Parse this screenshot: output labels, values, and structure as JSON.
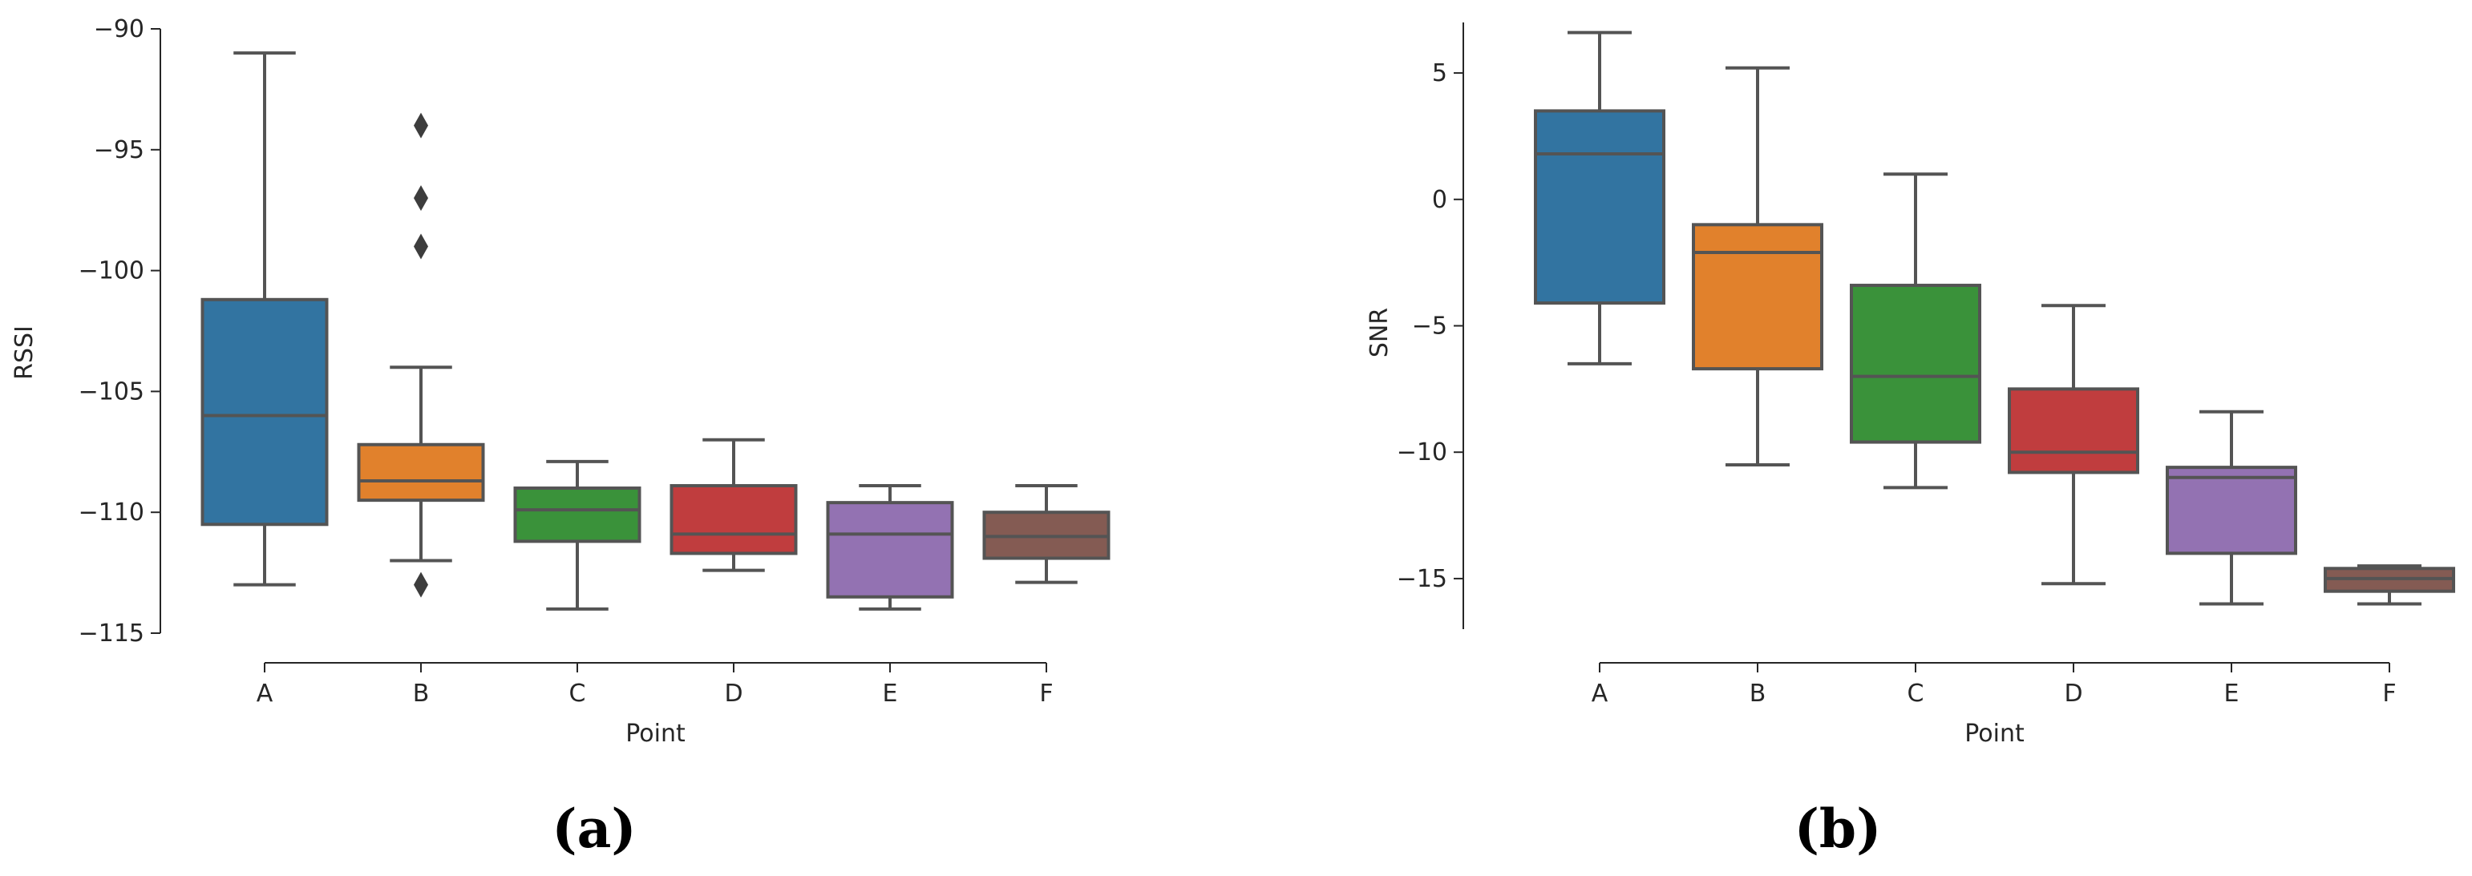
{
  "figure": {
    "captions": [
      "(a)",
      "(b)"
    ]
  },
  "chart_data": [
    {
      "type": "box",
      "xlabel": "Point",
      "ylabel": "RSSI",
      "ylim": [
        -115,
        -90
      ],
      "yticks": [
        -90,
        -95,
        -100,
        -105,
        -110,
        -115
      ],
      "categories": [
        "A",
        "B",
        "C",
        "D",
        "E",
        "F"
      ],
      "colors": [
        "#3274a1",
        "#e1812c",
        "#3a923a",
        "#c03d3e",
        "#9372b2",
        "#845b53"
      ],
      "boxes": [
        {
          "category": "A",
          "whisker_low": -113,
          "q1": -110.5,
          "median": -106,
          "q3": -101.2,
          "whisker_high": -91,
          "outliers": []
        },
        {
          "category": "B",
          "whisker_low": -112,
          "q1": -109.5,
          "median": -108.7,
          "q3": -107.2,
          "whisker_high": -104,
          "outliers": [
            -113,
            -94,
            -97,
            -99
          ]
        },
        {
          "category": "C",
          "whisker_low": -114,
          "q1": -111.2,
          "median": -109.9,
          "q3": -109,
          "whisker_high": -107.9,
          "outliers": []
        },
        {
          "category": "D",
          "whisker_low": -112.4,
          "q1": -111.7,
          "median": -110.9,
          "q3": -108.9,
          "whisker_high": -107,
          "outliers": []
        },
        {
          "category": "E",
          "whisker_low": -114,
          "q1": -113.5,
          "median": -110.9,
          "q3": -109.6,
          "whisker_high": -108.9,
          "outliers": []
        },
        {
          "category": "F",
          "whisker_low": -112.9,
          "q1": -111.9,
          "median": -111,
          "q3": -110,
          "whisker_high": -108.9,
          "outliers": []
        }
      ]
    },
    {
      "type": "box",
      "xlabel": "Point",
      "ylabel": "SNR",
      "ylim": [
        -17,
        7
      ],
      "yticks": [
        5,
        0,
        -5,
        -10,
        -15
      ],
      "categories": [
        "A",
        "B",
        "C",
        "D",
        "E",
        "F"
      ],
      "colors": [
        "#3274a1",
        "#e1812c",
        "#3a923a",
        "#c03d3e",
        "#9372b2",
        "#845b53"
      ],
      "boxes": [
        {
          "category": "A",
          "whisker_low": -6.5,
          "q1": -4.1,
          "median": 1.8,
          "q3": 3.5,
          "whisker_high": 6.6,
          "outliers": []
        },
        {
          "category": "B",
          "whisker_low": -10.5,
          "q1": -6.7,
          "median": -2.1,
          "q3": -1,
          "whisker_high": 5.2,
          "outliers": []
        },
        {
          "category": "C",
          "whisker_low": -11.4,
          "q1": -9.6,
          "median": -7,
          "q3": -3.4,
          "whisker_high": 1,
          "outliers": []
        },
        {
          "category": "D",
          "whisker_low": -15.2,
          "q1": -10.8,
          "median": -10,
          "q3": -7.5,
          "whisker_high": -4.2,
          "outliers": []
        },
        {
          "category": "E",
          "whisker_low": -16,
          "q1": -14,
          "median": -11,
          "q3": -10.6,
          "whisker_high": -8.4,
          "outliers": []
        },
        {
          "category": "F",
          "whisker_low": -16,
          "q1": -15.5,
          "median": -15,
          "q3": -14.6,
          "whisker_high": -14.5,
          "outliers": []
        }
      ]
    }
  ]
}
